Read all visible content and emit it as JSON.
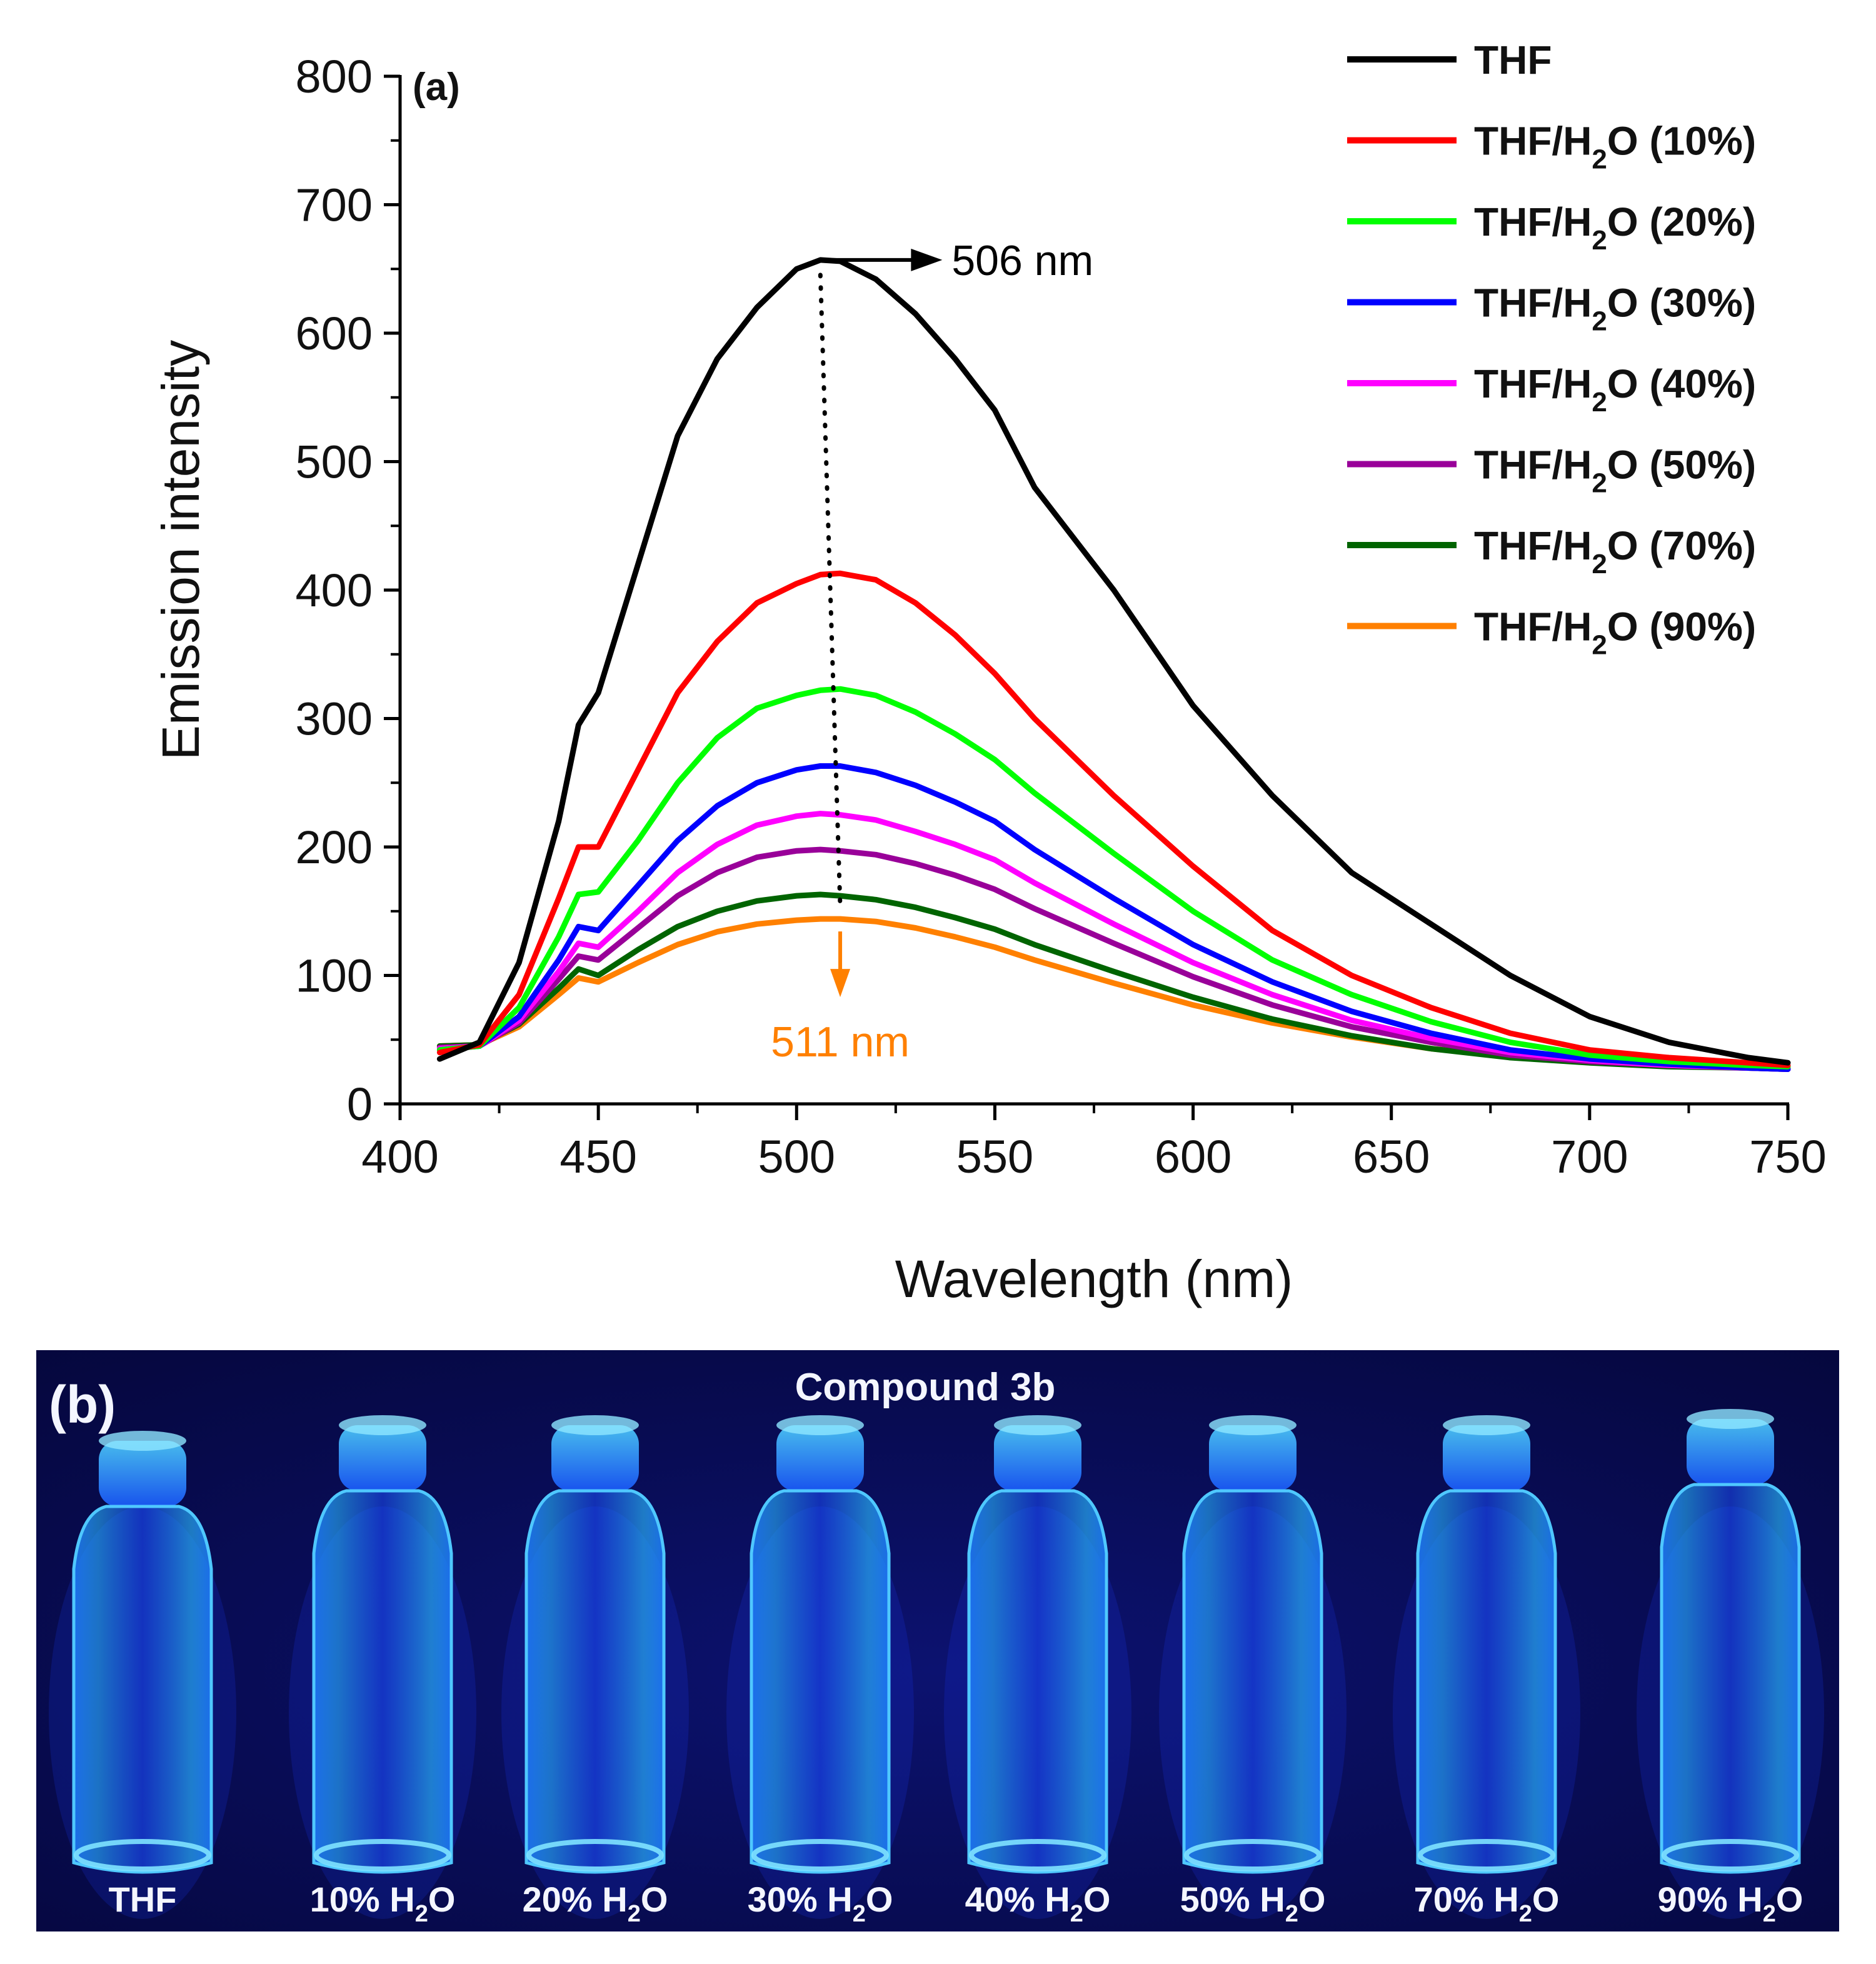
{
  "chart_data": {
    "type": "line",
    "panel_label": "(a)",
    "xlabel": "Wavelength (nm)",
    "ylabel": "Emission intensity",
    "xlim": [
      400,
      750
    ],
    "ylim": [
      0,
      800
    ],
    "x_ticks": [
      400,
      450,
      500,
      550,
      600,
      650,
      700,
      750
    ],
    "y_ticks": [
      0,
      100,
      200,
      300,
      400,
      500,
      600,
      700,
      800
    ],
    "x": [
      410,
      420,
      430,
      440,
      445,
      450,
      460,
      470,
      480,
      490,
      500,
      506,
      511,
      520,
      530,
      540,
      550,
      560,
      580,
      600,
      620,
      640,
      660,
      680,
      700,
      720,
      740,
      750
    ],
    "series": [
      {
        "name": "THF",
        "legend": [
          "THF",
          "",
          ""
        ],
        "color": "#000000",
        "values": [
          35,
          48,
          110,
          220,
          295,
          320,
          420,
          520,
          580,
          620,
          650,
          657,
          656,
          642,
          615,
          580,
          540,
          480,
          400,
          310,
          240,
          180,
          140,
          100,
          68,
          48,
          36,
          32
        ]
      },
      {
        "name": "THF/H2O (10%)",
        "legend": [
          "THF/H",
          "2",
          "O (10%)"
        ],
        "color": "#ff0000",
        "values": [
          40,
          46,
          85,
          160,
          200,
          200,
          260,
          320,
          360,
          390,
          405,
          412,
          413,
          408,
          390,
          365,
          335,
          300,
          240,
          185,
          135,
          100,
          75,
          55,
          42,
          36,
          32,
          30
        ]
      },
      {
        "name": "THF/H2O (20%)",
        "legend": [
          "THF/H",
          "2",
          "O (20%)"
        ],
        "color": "#00ff00",
        "values": [
          42,
          45,
          75,
          130,
          163,
          165,
          205,
          250,
          285,
          308,
          318,
          322,
          323,
          318,
          305,
          288,
          268,
          242,
          195,
          150,
          112,
          85,
          64,
          48,
          38,
          33,
          30,
          29
        ]
      },
      {
        "name": "THF/H2O (30%)",
        "legend": [
          "THF/H",
          "2",
          "O (30%)"
        ],
        "color": "#0000ff",
        "values": [
          42,
          45,
          68,
          112,
          138,
          135,
          170,
          205,
          232,
          250,
          260,
          263,
          263,
          258,
          248,
          235,
          220,
          198,
          160,
          124,
          95,
          72,
          55,
          42,
          35,
          31,
          28,
          27
        ]
      },
      {
        "name": "THF/H2O (40%)",
        "legend": [
          "THF/H",
          "2",
          "O (40%)"
        ],
        "color": "#ff00ff",
        "values": [
          43,
          45,
          65,
          103,
          125,
          122,
          150,
          180,
          202,
          217,
          224,
          226,
          225,
          221,
          212,
          202,
          190,
          172,
          140,
          110,
          85,
          65,
          51,
          40,
          34,
          30,
          28,
          27
        ]
      },
      {
        "name": "THF/H2O (50%)",
        "legend": [
          "THF/H",
          "2",
          "O (50%)"
        ],
        "color": "#990099",
        "values": [
          44,
          45,
          63,
          97,
          115,
          112,
          137,
          162,
          180,
          192,
          197,
          198,
          197,
          194,
          187,
          178,
          167,
          152,
          125,
          99,
          77,
          60,
          48,
          38,
          33,
          30,
          28,
          27
        ]
      },
      {
        "name": "THF/H2O (70%)",
        "legend": [
          "THF/H",
          "2",
          "O (70%)"
        ],
        "color": "#006400",
        "values": [
          45,
          46,
          62,
          90,
          105,
          100,
          120,
          138,
          150,
          158,
          162,
          163,
          162,
          159,
          153,
          145,
          136,
          124,
          103,
          83,
          66,
          53,
          43,
          36,
          32,
          29,
          28,
          27
        ]
      },
      {
        "name": "THF/H2O (90%)",
        "legend": [
          "THF/H",
          "2",
          "O (90%)"
        ],
        "color": "#ff8000",
        "values": [
          45,
          46,
          60,
          85,
          98,
          95,
          110,
          124,
          134,
          140,
          143,
          144,
          144,
          142,
          137,
          130,
          122,
          112,
          94,
          77,
          63,
          52,
          43,
          37,
          33,
          30,
          29,
          28
        ]
      }
    ],
    "annotations": [
      {
        "text": "506 nm",
        "x": 506,
        "y": 657,
        "color": "#000000"
      },
      {
        "text": "511 nm",
        "x": 511,
        "y": 144,
        "color": "#ff8000"
      }
    ]
  },
  "photo": {
    "panel_label": "(b)",
    "title": "Compound 3b",
    "vials": [
      {
        "label": "THF"
      },
      {
        "label": "10% H",
        "sub": "2",
        "tail": "O"
      },
      {
        "label": "20% H",
        "sub": "2",
        "tail": "O"
      },
      {
        "label": "30% H",
        "sub": "2",
        "tail": "O"
      },
      {
        "label": "40% H",
        "sub": "2",
        "tail": "O"
      },
      {
        "label": "50% H",
        "sub": "2",
        "tail": "O"
      },
      {
        "label": "70% H",
        "sub": "2",
        "tail": "O"
      },
      {
        "label": "90% H",
        "sub": "2",
        "tail": "O"
      }
    ]
  }
}
